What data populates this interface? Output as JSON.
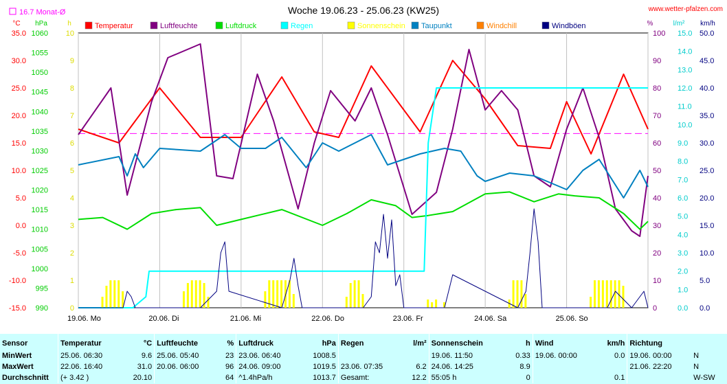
{
  "header": {
    "title": "Woche 19.06.23 - 25.06.23 (KW25)",
    "site": "www.wetter-pfalzen.com",
    "monthly_avg_label": "16.7 Monat-Ø"
  },
  "chart_data": {
    "type": "line",
    "title": "Woche 19.06.23 - 25.06.23 (KW25)",
    "x_labels": [
      "19.06. Mo",
      "20.06. Di",
      "21.06. Mi",
      "22.06. Do",
      "23.06. Fr",
      "24.06. Sa",
      "25.06. So"
    ],
    "axes": {
      "temp": {
        "unit": "°C",
        "range": [
          -15,
          35
        ],
        "ticks": [
          "35.0",
          "30.0",
          "25.0",
          "20.0",
          "15.0",
          "10.0",
          "5.0",
          "0.0",
          "-5.0",
          "-10.0",
          "-15.0"
        ],
        "color": "#ff0000"
      },
      "pressure": {
        "unit": "hPa",
        "range": [
          990,
          1060
        ],
        "ticks": [
          "1060",
          "1055",
          "1050",
          "1045",
          "1040",
          "1035",
          "1030",
          "1025",
          "1020",
          "1015",
          "1010",
          "1005",
          "1000",
          "995",
          "990"
        ],
        "color": "#00cc00"
      },
      "sun": {
        "unit": "h",
        "range": [
          0,
          10
        ],
        "ticks": [
          "10",
          "9",
          "8",
          "7",
          "6",
          "5",
          "4",
          "3",
          "2",
          "1",
          "0"
        ],
        "color": "#dddd00"
      },
      "humidity": {
        "unit": "%",
        "range": [
          0,
          100
        ],
        "ticks": [
          "100",
          "90",
          "80",
          "70",
          "60",
          "50",
          "40",
          "30",
          "20",
          "10",
          "0"
        ],
        "color": "#800080"
      },
      "rain": {
        "unit": "l/m²",
        "range": [
          0,
          15
        ],
        "ticks": [
          "15.0",
          "14.0",
          "13.0",
          "12.0",
          "11.0",
          "10.0",
          "9.0",
          "8.0",
          "7.0",
          "6.0",
          "5.0",
          "4.0",
          "3.0",
          "2.0",
          "1.0",
          "0.0"
        ],
        "color": "#00cccc"
      },
      "wind": {
        "unit": "km/h",
        "range": [
          0,
          50
        ],
        "ticks": [
          "50.0",
          "45.0",
          "40.0",
          "35.0",
          "30.0",
          "25.0",
          "20.0",
          "15.0",
          "10.0",
          "5.0",
          "0.0"
        ],
        "color": "#000080"
      }
    },
    "monthly_avg_temp": 16.7,
    "legend": [
      {
        "name": "Temperatur",
        "color": "#ff0000"
      },
      {
        "name": "Luftfeuchte",
        "color": "#800080"
      },
      {
        "name": "Luftdruck",
        "color": "#00dd00"
      },
      {
        "name": "Regen",
        "color": "#00ffff"
      },
      {
        "name": "Sonnenschein",
        "color": "#ffff00"
      },
      {
        "name": "Taupunkt",
        "color": "#0080c0"
      },
      {
        "name": "Windchill",
        "color": "#ff8000"
      },
      {
        "name": "Windböen",
        "color": "#000080"
      }
    ],
    "series": [
      {
        "key": "temp",
        "axis": "temp",
        "color": "#ff0000",
        "x": [
          0,
          0.5,
          1,
          1.5,
          2,
          2.5,
          2.9,
          3.2,
          3.6,
          4,
          4.2,
          4.6,
          5,
          5.4,
          5.8,
          6,
          6.3,
          6.7,
          7
        ],
        "values": [
          17.5,
          15,
          25,
          16,
          16,
          27,
          17,
          16,
          29,
          21,
          17,
          30,
          23,
          14.5,
          14,
          22.5,
          13,
          27.5,
          17.5
        ]
      },
      {
        "key": "humidity",
        "axis": "humidity",
        "color": "#800080",
        "x": [
          0,
          0.4,
          0.6,
          0.9,
          1.1,
          1.5,
          1.7,
          1.9,
          2.2,
          2.4,
          2.7,
          2.9,
          3.1,
          3.4,
          3.6,
          3.8,
          4.1,
          4.4,
          4.6,
          4.8,
          5,
          5.2,
          5.4,
          5.6,
          5.8,
          6,
          6.2,
          6.4,
          6.6,
          6.8,
          6.9,
          7
        ],
        "values": [
          63,
          80,
          41,
          75,
          91,
          96,
          48,
          47,
          85,
          68,
          36,
          60,
          79,
          68,
          80,
          63,
          34,
          42,
          65,
          94,
          72,
          79,
          72,
          48,
          44,
          65,
          80,
          62,
          36,
          28,
          26,
          48
        ]
      },
      {
        "key": "pressure",
        "axis": "pressure",
        "color": "#00dd00",
        "x": [
          0,
          0.3,
          0.6,
          0.9,
          1.2,
          1.5,
          1.7,
          2,
          2.5,
          3,
          3.3,
          3.6,
          3.9,
          4.1,
          4.3,
          4.6,
          5,
          5.3,
          5.6,
          5.9,
          6.1,
          6.4,
          6.7,
          6.9,
          7
        ],
        "values": [
          1012.5,
          1013,
          1010,
          1014,
          1015,
          1015.5,
          1011,
          1012.5,
          1015,
          1011,
          1014,
          1017.5,
          1016,
          1013,
          1013.5,
          1014.5,
          1019,
          1019.5,
          1017,
          1019,
          1018.5,
          1018,
          1014,
          1010,
          1012
        ]
      },
      {
        "key": "dewpoint",
        "axis": "temp",
        "color": "#0080c0",
        "x": [
          0,
          0.5,
          0.6,
          0.7,
          0.8,
          1,
          1.5,
          1.8,
          2,
          2.3,
          2.5,
          2.8,
          3,
          3.2,
          3.4,
          3.6,
          3.8,
          4,
          4.2,
          4.5,
          4.7,
          4.9,
          5,
          5.3,
          5.6,
          6,
          6.2,
          6.4,
          6.7,
          6.9,
          7
        ],
        "values": [
          11,
          12.5,
          9,
          13,
          10.5,
          14,
          13.5,
          16.5,
          14,
          14,
          16,
          10.5,
          15,
          13.5,
          15,
          16.5,
          11,
          12,
          13,
          14,
          13.5,
          9,
          8,
          9.5,
          9,
          6.5,
          10,
          12,
          5,
          10,
          7
        ]
      },
      {
        "key": "rain",
        "axis": "rain",
        "color": "#00ffff",
        "x": [
          0,
          0.67,
          0.83,
          0.87,
          4.25,
          4.3,
          4.4,
          5,
          6,
          7
        ],
        "values": [
          0,
          0,
          0.6,
          2.0,
          2.0,
          9.0,
          12.0,
          12.0,
          12.0,
          12.0
        ]
      },
      {
        "key": "sunshine",
        "axis": "sun",
        "type": "bar",
        "color": "#ffff00",
        "x": [
          0.3,
          0.35,
          0.4,
          0.45,
          0.5,
          0.55,
          1.3,
          1.35,
          1.4,
          1.45,
          1.5,
          1.55,
          1.6,
          2.3,
          2.35,
          2.4,
          2.45,
          2.5,
          2.55,
          2.6,
          2.65,
          3.3,
          3.35,
          3.4,
          3.45,
          3.5,
          4.3,
          4.35,
          4.4,
          4.5,
          5.3,
          5.35,
          5.4,
          5.45,
          5.5,
          6.3,
          6.35,
          6.4,
          6.45,
          6.5,
          6.55,
          6.6,
          6.65,
          6.7
        ],
        "values": [
          0.4,
          0.8,
          1,
          1,
          1,
          0.6,
          0.6,
          0.9,
          1,
          1,
          1,
          0.9,
          0.4,
          0.6,
          1,
          1,
          1,
          1,
          1,
          1,
          0.5,
          0.4,
          0.9,
          1,
          1,
          0.5,
          0.3,
          0.2,
          0.3,
          0.2,
          0.3,
          1,
          1,
          1,
          0.5,
          0.4,
          1,
          1,
          1,
          1,
          1,
          1,
          1,
          0.8
        ]
      },
      {
        "key": "gusts",
        "axis": "wind",
        "color": "#000080",
        "x": [
          0,
          0.55,
          0.6,
          0.65,
          0.7,
          1.5,
          1.7,
          1.75,
          1.8,
          1.85,
          2.5,
          2.6,
          2.65,
          2.7,
          2.75,
          3.5,
          3.6,
          3.65,
          3.7,
          3.75,
          3.8,
          3.85,
          3.9,
          3.95,
          4.0,
          4.5,
          4.6,
          5.4,
          5.5,
          5.55,
          5.6,
          5.65,
          5.7,
          6.0,
          6.5,
          6.6,
          6.8,
          6.95,
          7
        ],
        "values": [
          0,
          0,
          3,
          2,
          0,
          0,
          3,
          10,
          12,
          3,
          0,
          5,
          9,
          4,
          0,
          0,
          2,
          12,
          10,
          17,
          9,
          16,
          4,
          6,
          0,
          0,
          6,
          0,
          3,
          10,
          18,
          12,
          0,
          0,
          0,
          3,
          0,
          3,
          0
        ]
      }
    ]
  },
  "stats": {
    "headers": [
      "Sensor",
      "Temperatur",
      "°C",
      "Luftfeuchte",
      "%",
      "Luftdruck",
      "hPa",
      "Regen",
      "l/m²",
      "Sonnenschein",
      "h",
      "Wind",
      "km/h",
      "Richtung"
    ],
    "rows": [
      {
        "label": "MinWert",
        "cells": [
          "25.06.  06:30",
          "9.6",
          "25.06.  05:40",
          "23",
          "23.06.  06:40",
          "1008.5",
          "",
          "",
          "19.06.  11:50",
          "0.33",
          "19.06.  00:00",
          "0.0",
          "19.06.  00:00",
          "N"
        ]
      },
      {
        "label": "MaxWert",
        "cells": [
          "22.06.  16:40",
          "31.0",
          "20.06.  06:00",
          "96",
          "24.06.  09:00",
          "1019.5",
          "23.06.  07:35",
          "6.2",
          "24.06.  14:25",
          "8.9",
          "",
          "",
          "21.06.  22:20",
          "N"
        ]
      },
      {
        "label": "Durchschnitt",
        "cells": [
          "(+ 3.42 )",
          "20.10",
          "",
          "64",
          "^1.4hPa/h",
          "1013.7",
          "Gesamt:",
          "12.2",
          "55:05 h",
          "0",
          "",
          "0.1",
          "",
          "W-SW"
        ]
      }
    ]
  }
}
